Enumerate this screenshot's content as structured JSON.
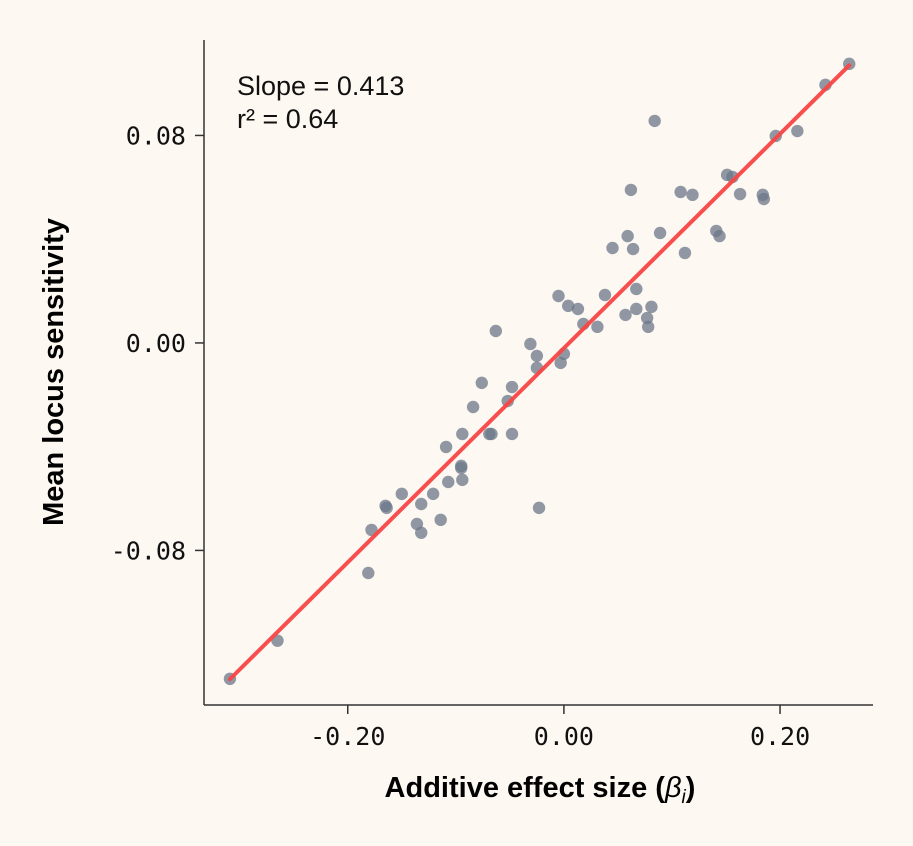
{
  "chart_data": {
    "type": "scatter",
    "title": "",
    "xlabel": "Additive effect size (",
    "xlabel_symbol": "β",
    "xlabel_subscript": "i",
    "xlabel_close": ")",
    "ylabel": "Mean locus sensitivity",
    "xlim": [
      -0.333,
      0.286
    ],
    "ylim": [
      -0.1396,
      0.1168
    ],
    "xticks": [
      -0.2,
      0.0,
      0.2
    ],
    "xtick_labels": [
      "-0.20",
      "0.00",
      "0.20"
    ],
    "yticks": [
      -0.08,
      0.0,
      0.08
    ],
    "ytick_labels": [
      "-0.08",
      "0.00",
      "0.08"
    ],
    "grid": false,
    "annotations": [
      "Slope = 0.413",
      "r² = 0.64"
    ],
    "fit": {
      "slope": 0.413,
      "intercept": -0.002,
      "r2": 0.64,
      "x_range": [
        -0.309,
        0.264
      ]
    },
    "colors": {
      "points": "#6b7788",
      "fit_line": "#f84444",
      "background": "#fdf8f2"
    },
    "points": [
      [
        -0.309,
        -0.1295
      ],
      [
        -0.265,
        -0.1148
      ],
      [
        -0.181,
        -0.0887
      ],
      [
        -0.178,
        -0.0721
      ],
      [
        -0.165,
        -0.0628
      ],
      [
        -0.164,
        -0.0636
      ],
      [
        -0.15,
        -0.0582
      ],
      [
        -0.136,
        -0.0698
      ],
      [
        -0.132,
        -0.0732
      ],
      [
        -0.132,
        -0.0621
      ],
      [
        -0.121,
        -0.0582
      ],
      [
        -0.114,
        -0.0682
      ],
      [
        -0.109,
        -0.0401
      ],
      [
        -0.107,
        -0.0536
      ],
      [
        -0.095,
        -0.0474
      ],
      [
        -0.095,
        -0.0482
      ],
      [
        -0.094,
        -0.0528
      ],
      [
        -0.094,
        -0.0351
      ],
      [
        -0.084,
        -0.0247
      ],
      [
        -0.076,
        -0.0154
      ],
      [
        -0.069,
        -0.0351
      ],
      [
        -0.067,
        -0.0351
      ],
      [
        -0.063,
        0.0046
      ],
      [
        -0.052,
        -0.0224
      ],
      [
        -0.048,
        -0.017
      ],
      [
        -0.048,
        -0.0351
      ],
      [
        -0.031,
        -0.0004
      ],
      [
        -0.025,
        -0.005
      ],
      [
        -0.025,
        -0.0096
      ],
      [
        -0.023,
        -0.0636
      ],
      [
        -0.003,
        -0.0077
      ],
      [
        0.0,
        -0.0042
      ],
      [
        -0.005,
        0.0181
      ],
      [
        0.004,
        0.0143
      ],
      [
        0.013,
        0.0131
      ],
      [
        0.018,
        0.0073
      ],
      [
        0.031,
        0.0062
      ],
      [
        0.038,
        0.0185
      ],
      [
        0.045,
        0.0366
      ],
      [
        0.057,
        0.0108
      ],
      [
        0.059,
        0.0412
      ],
      [
        0.064,
        0.0362
      ],
      [
        0.062,
        0.059
      ],
      [
        0.067,
        0.0208
      ],
      [
        0.067,
        0.0131
      ],
      [
        0.077,
        0.0096
      ],
      [
        0.078,
        0.0062
      ],
      [
        0.081,
        0.0139
      ],
      [
        0.084,
        0.0856
      ],
      [
        0.089,
        0.0424
      ],
      [
        0.108,
        0.0582
      ],
      [
        0.112,
        0.0347
      ],
      [
        0.119,
        0.0571
      ],
      [
        0.141,
        0.0432
      ],
      [
        0.144,
        0.0412
      ],
      [
        0.151,
        0.0648
      ],
      [
        0.156,
        0.064
      ],
      [
        0.163,
        0.0574
      ],
      [
        0.184,
        0.0571
      ],
      [
        0.185,
        0.0555
      ],
      [
        0.196,
        0.0798
      ],
      [
        0.216,
        0.0817
      ],
      [
        0.242,
        0.0995
      ],
      [
        0.264,
        0.1076
      ]
    ]
  }
}
